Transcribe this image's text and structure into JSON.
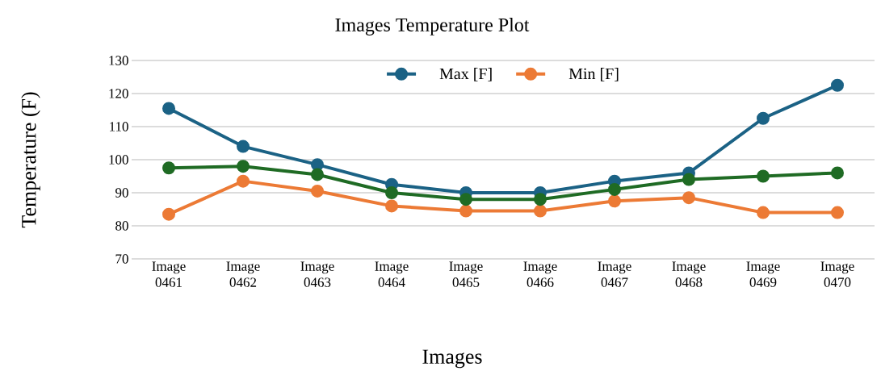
{
  "chart_data": {
    "type": "line",
    "title": "Images Temperature Plot",
    "xlabel": "Images",
    "ylabel": "Temperature (F)",
    "categories": [
      "Image 0461",
      "Image 0462",
      "Image 0463",
      "Image 0464",
      "Image 0465",
      "Image 0466",
      "Image 0467",
      "Image 0468",
      "Image 0469",
      "Image 0470"
    ],
    "series": [
      {
        "name": "Max [F]",
        "color": "#1b6285",
        "values": [
          115.5,
          104,
          98.5,
          92.5,
          90,
          90,
          93.5,
          96,
          112.5,
          122.5
        ]
      },
      {
        "name": "Min [F]",
        "color": "#ec7a35",
        "values": [
          83.5,
          93.5,
          90.5,
          86,
          84.5,
          84.5,
          87.5,
          88.5,
          84,
          84
        ]
      },
      {
        "color": "#1f6b24",
        "values": [
          97.5,
          98,
          95.5,
          90,
          88,
          88,
          91,
          94,
          95,
          96
        ]
      }
    ],
    "ylim": [
      70,
      130
    ],
    "yticks": [
      70,
      80,
      90,
      100,
      110,
      120,
      130
    ],
    "grid": "y",
    "legend": "top",
    "marker": "circle",
    "line_style": "solid"
  }
}
